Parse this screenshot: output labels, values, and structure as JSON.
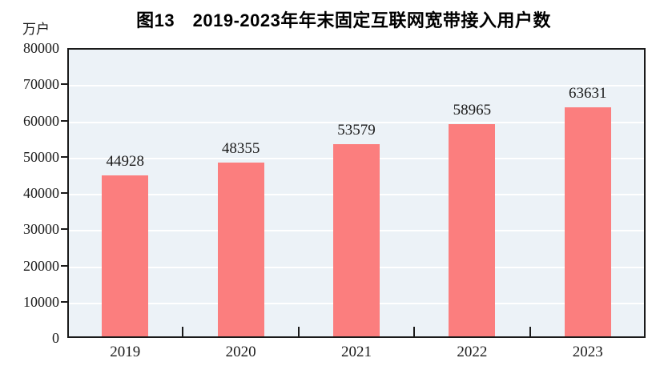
{
  "page": {
    "background": "#ffffff"
  },
  "chart_data": {
    "type": "bar",
    "title": "图13　2019-2023年年末固定互联网宽带接入用户数",
    "unit_label": "万户",
    "categories": [
      "2019",
      "2020",
      "2021",
      "2022",
      "2023"
    ],
    "values": [
      44928,
      48355,
      53579,
      58965,
      63631
    ],
    "xlabel": "",
    "ylabel": "万户",
    "ylim": [
      0,
      80000
    ],
    "ytick_step": 10000,
    "yticks": [
      0,
      10000,
      20000,
      30000,
      40000,
      50000,
      60000,
      70000,
      80000
    ],
    "grid": "horizontal",
    "legend": "none",
    "data_labels": "above-bars",
    "colors": {
      "bar": "#FB7E7E",
      "plot_background": "#ECF2F7",
      "gridline": "#FFFFFF",
      "axis": "#1A1A1A",
      "text": "#1A1A1A",
      "title": "#000000"
    }
  }
}
